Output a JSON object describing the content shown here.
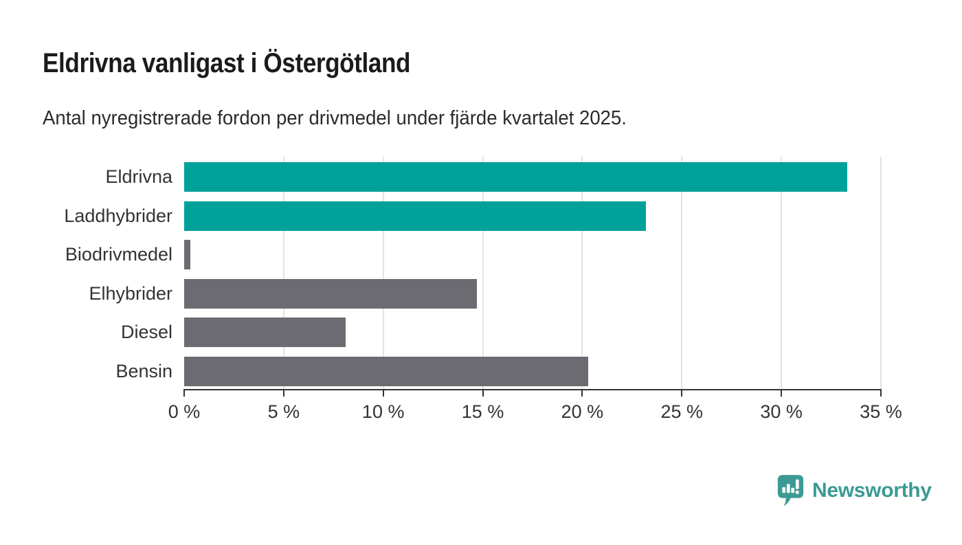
{
  "header": {
    "title": "Eldrivna vanligast i Östergötland",
    "subtitle": "Antal nyregistrerade fordon per drivmedel under fjärde kvartalet 2025."
  },
  "chart_data": {
    "type": "bar",
    "orientation": "horizontal",
    "title": "Eldrivna vanligast i Östergötland",
    "subtitle": "Antal nyregistrerade fordon per drivmedel under fjärde kvartalet 2025.",
    "categories": [
      "Eldrivna",
      "Laddhybrider",
      "Biodrivmedel",
      "Elhybrider",
      "Diesel",
      "Bensin"
    ],
    "values": [
      33.3,
      23.2,
      0.3,
      14.7,
      8.1,
      20.3
    ],
    "unit": "%",
    "xlabel": "",
    "ylabel": "",
    "xlim": [
      0,
      35
    ],
    "xticks": [
      0,
      5,
      10,
      15,
      20,
      25,
      30,
      35
    ],
    "xtick_suffix": " %",
    "grid": true,
    "legend": "none",
    "colors": {
      "highlight": "#00a19a",
      "default": "#6b6b71",
      "gridline": "#e2e2e2",
      "axis": "#333333",
      "title_text": "#1b1b1b",
      "series_color_keys": [
        "highlight",
        "highlight",
        "default",
        "default",
        "default",
        "default"
      ]
    }
  },
  "footer": {
    "brand": "Newsworthy",
    "brand_color": "#3b9b94",
    "logo_icon": "bar-chart-speech-bubble-icon"
  }
}
